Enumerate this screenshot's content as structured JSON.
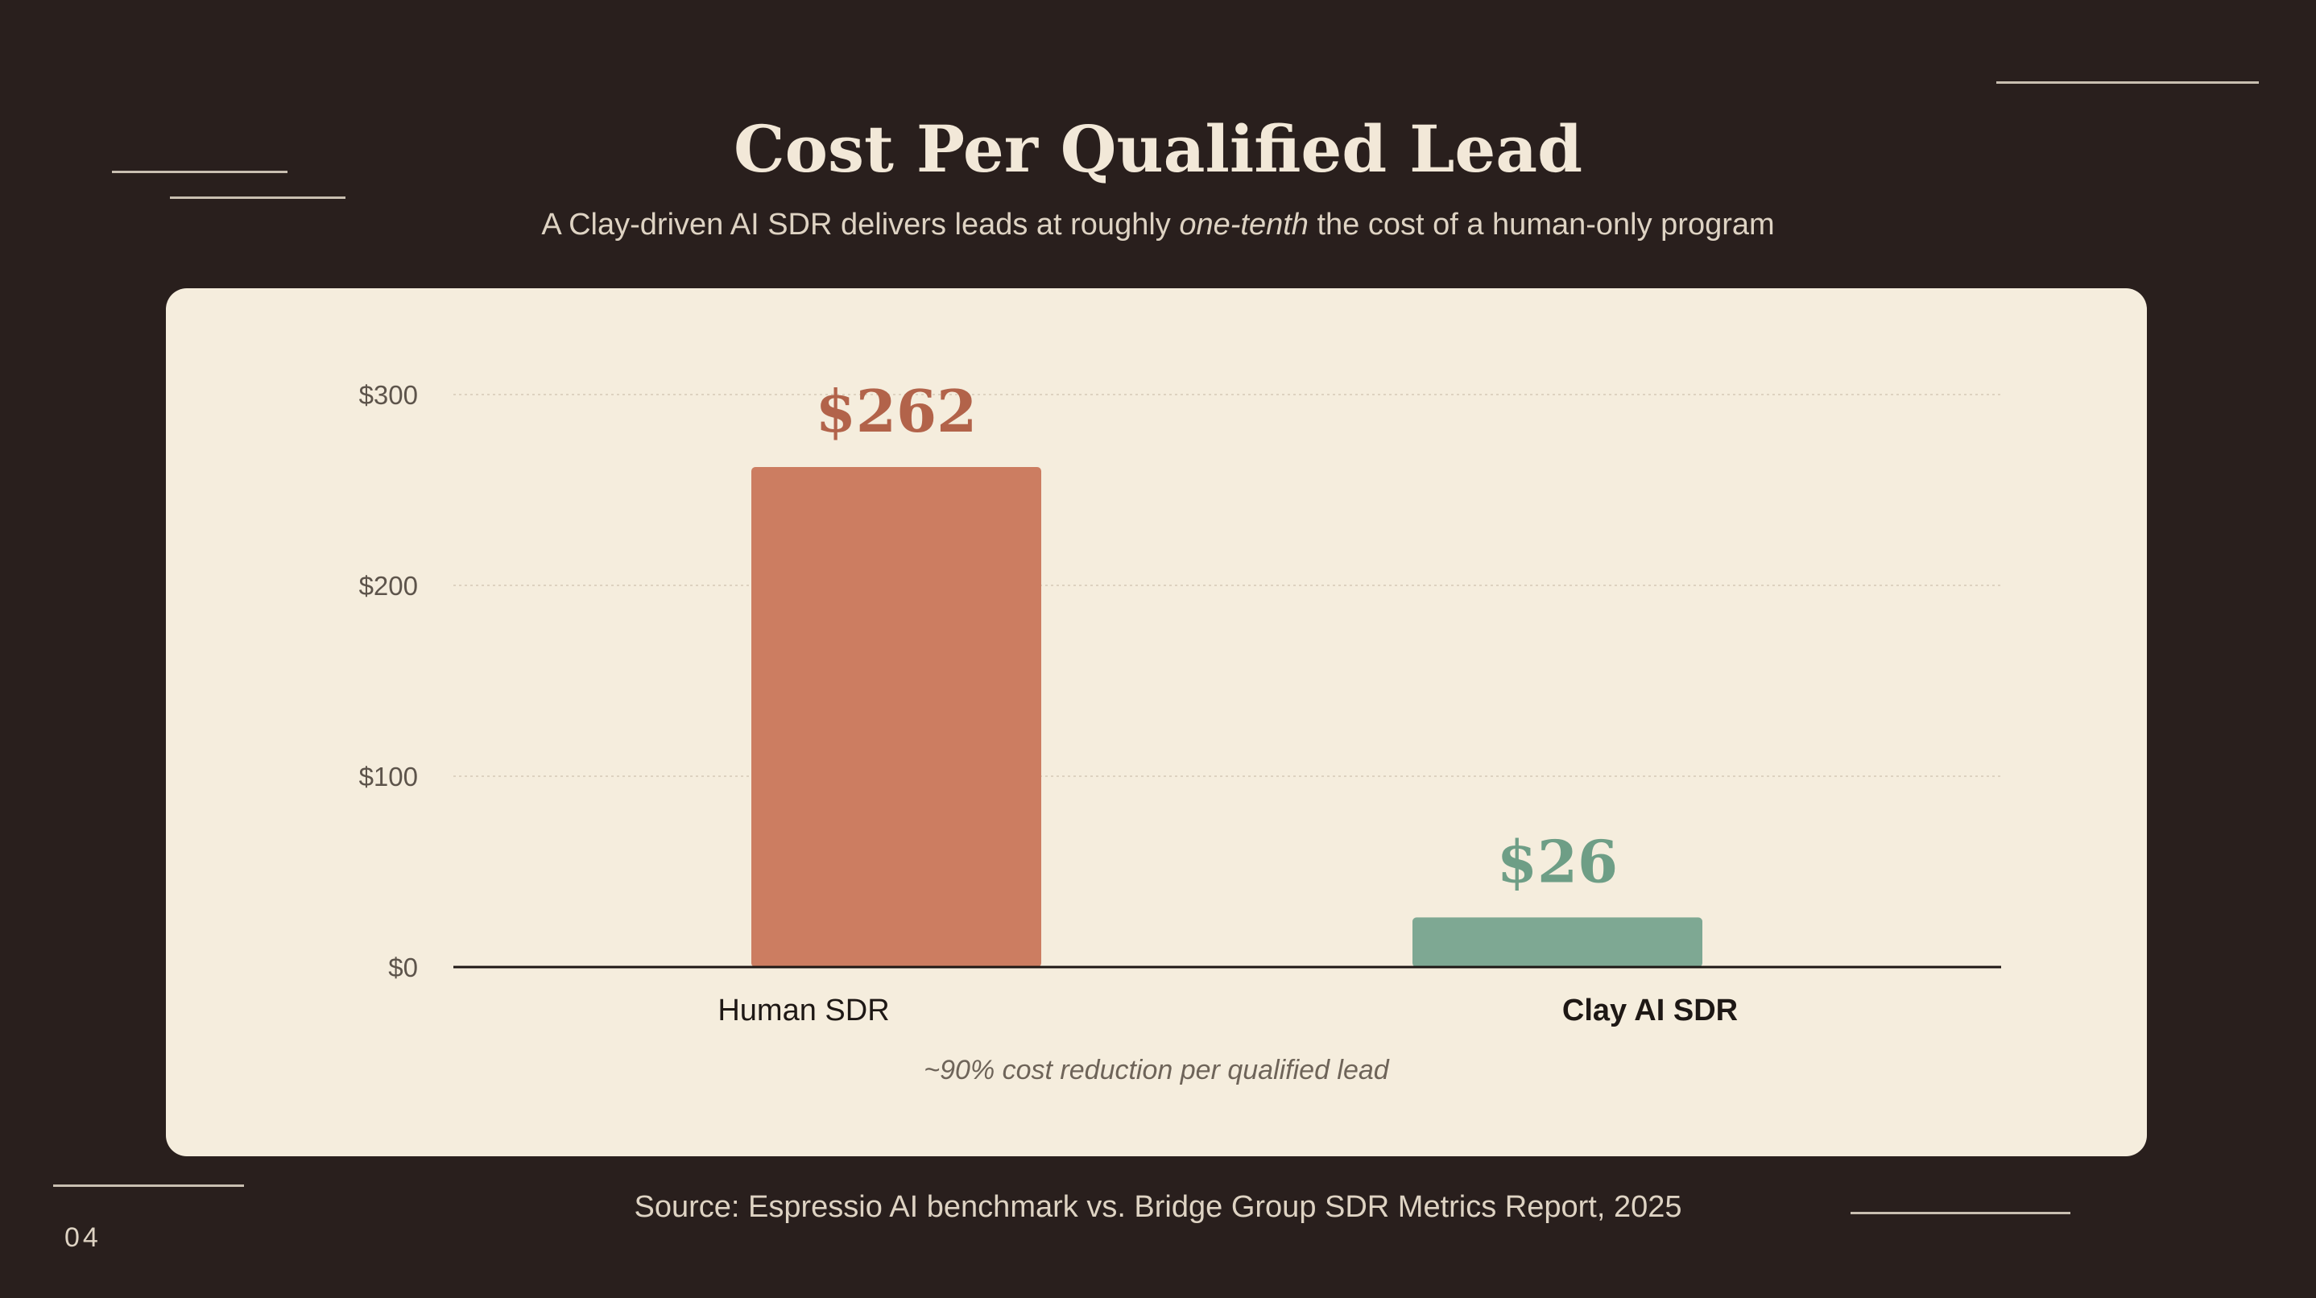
{
  "slide": {
    "title": "Cost Per Qualified Lead",
    "subtitle_before": "A Clay-driven AI SDR delivers leads at roughly ",
    "subtitle_emphasis": "one-tenth",
    "subtitle_after": " the cost of a human-only program",
    "source": "Source: Espressio AI benchmark vs. Bridge Group SDR Metrics Report, 2025",
    "page_number": "04"
  },
  "chart_data": {
    "type": "bar",
    "categories": [
      "Human SDR",
      "Clay AI SDR"
    ],
    "values": [
      262,
      26
    ],
    "value_labels": [
      "$262",
      "$26"
    ],
    "ylim": [
      0,
      300
    ],
    "yticks": [
      0,
      100,
      200,
      300
    ],
    "ytick_labels": [
      "$0",
      "$100",
      "$200",
      "$300"
    ],
    "grid": true,
    "bar_colors": [
      "#cc7d61",
      "#7ea893"
    ],
    "label_colors": [
      "#b2634a",
      "#6e9e86"
    ],
    "annotation": "~90% cost reduction per qualified lead"
  }
}
